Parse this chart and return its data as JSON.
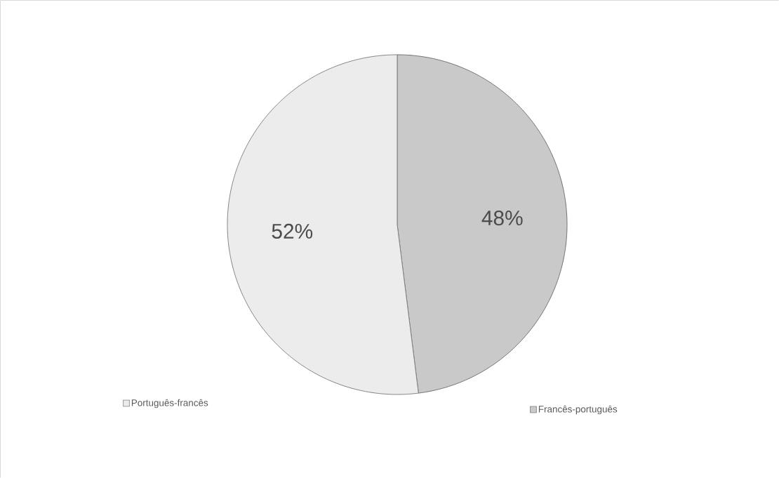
{
  "chart_data": {
    "type": "pie",
    "categories": [
      "Francês-português",
      "Português-francês"
    ],
    "values": [
      48,
      52
    ],
    "colors": [
      "#c9c9c9",
      "#ececec"
    ],
    "value_labels": [
      "48%",
      "52%"
    ],
    "legend": "bottom"
  }
}
